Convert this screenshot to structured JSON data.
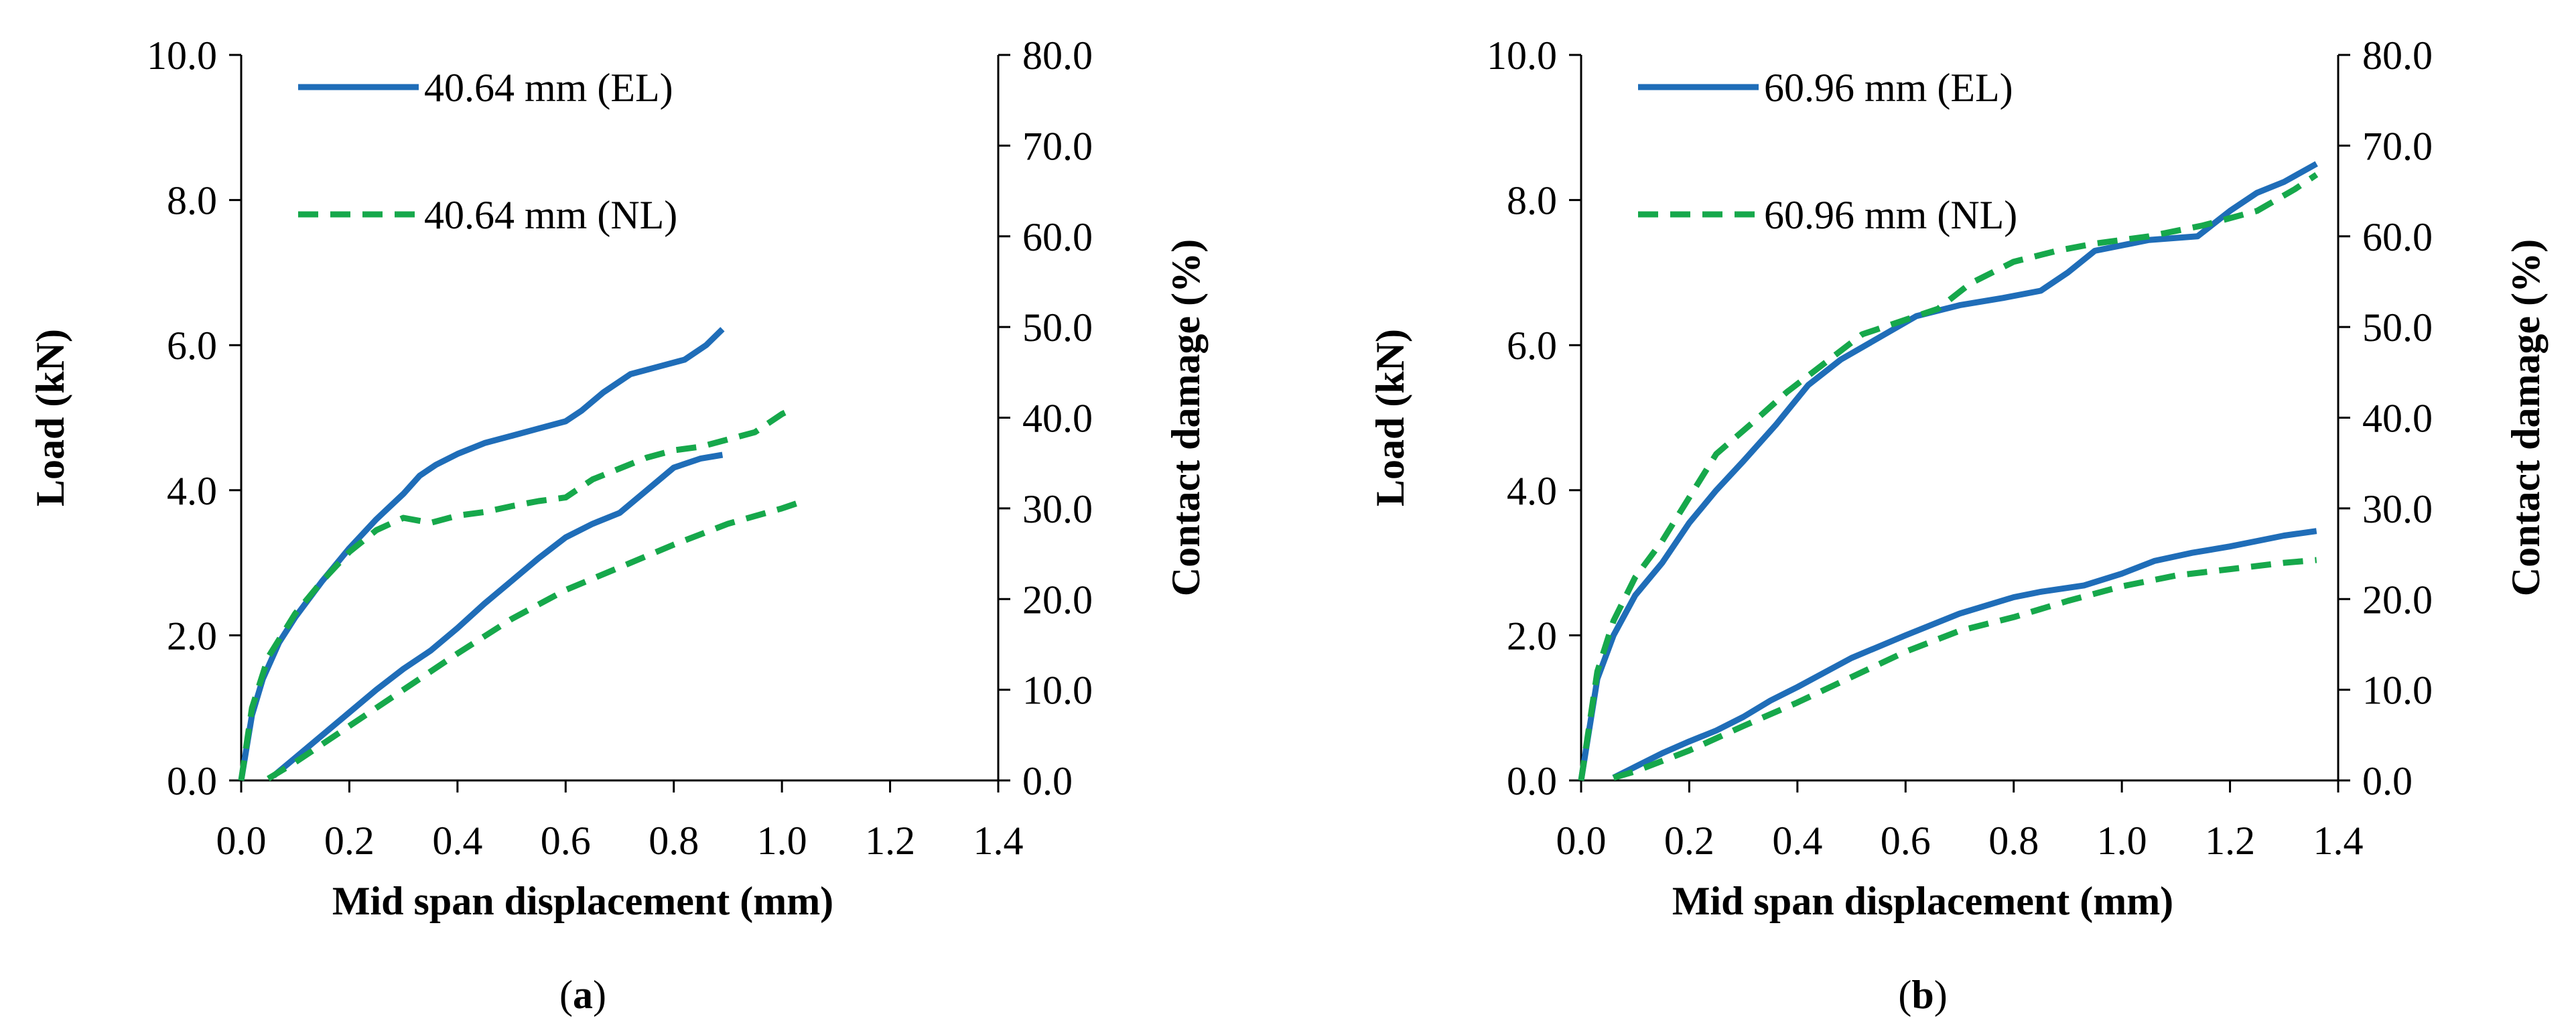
{
  "colors": {
    "el": "#1F6DB8",
    "nl": "#16A84B",
    "axis": "#000000"
  },
  "chart_data": [
    {
      "type": "line",
      "caption_prefix": "(",
      "caption_letter": "a",
      "caption_suffix": ")",
      "xlabel": "Mid span displacement (mm)",
      "ylabel": "Load (kN)",
      "y2label": "Contact damage (%)",
      "xlim": [
        0,
        1.4
      ],
      "ylim": [
        0,
        10
      ],
      "y2lim": [
        0,
        80
      ],
      "xticks": [
        "0.0",
        "0.2",
        "0.4",
        "0.6",
        "0.8",
        "1.0",
        "1.2",
        "1.4"
      ],
      "yticks": [
        "0.0",
        "2.0",
        "4.0",
        "6.0",
        "8.0",
        "10.0"
      ],
      "y2ticks": [
        "0.0",
        "10.0",
        "20.0",
        "30.0",
        "40.0",
        "50.0",
        "60.0",
        "70.0",
        "80.0"
      ],
      "legend": [
        {
          "label": "40.64 mm (EL)",
          "style": "solid"
        },
        {
          "label": "40.64 mm (NL)",
          "style": "dashed"
        }
      ],
      "series": [
        {
          "name": "40.64 mm (EL) load",
          "style": "solid",
          "axis": "left",
          "x": [
            0,
            0.02,
            0.04,
            0.07,
            0.1,
            0.15,
            0.2,
            0.25,
            0.3,
            0.33,
            0.36,
            0.4,
            0.45,
            0.5,
            0.55,
            0.6,
            0.63,
            0.67,
            0.72,
            0.77,
            0.82,
            0.86,
            0.89
          ],
          "y": [
            0,
            0.9,
            1.4,
            1.9,
            2.25,
            2.75,
            3.2,
            3.6,
            3.95,
            4.2,
            4.35,
            4.5,
            4.65,
            4.75,
            4.85,
            4.95,
            5.1,
            5.35,
            5.6,
            5.7,
            5.8,
            6.0,
            6.22
          ]
        },
        {
          "name": "40.64 mm (NL) load",
          "style": "dashed",
          "axis": "left",
          "x": [
            0,
            0.02,
            0.05,
            0.1,
            0.15,
            0.2,
            0.25,
            0.3,
            0.35,
            0.4,
            0.45,
            0.5,
            0.55,
            0.6,
            0.65,
            0.7,
            0.75,
            0.8,
            0.85,
            0.9,
            0.95,
            1.0,
            1.02
          ],
          "y": [
            0,
            1.0,
            1.7,
            2.3,
            2.75,
            3.15,
            3.45,
            3.62,
            3.55,
            3.65,
            3.7,
            3.78,
            3.85,
            3.9,
            4.15,
            4.3,
            4.45,
            4.55,
            4.6,
            4.7,
            4.8,
            5.05,
            5.12
          ]
        },
        {
          "name": "40.64 mm (EL) contact damage",
          "style": "solid",
          "axis": "right",
          "x": [
            0.06,
            0.1,
            0.15,
            0.2,
            0.25,
            0.3,
            0.35,
            0.4,
            0.45,
            0.5,
            0.55,
            0.6,
            0.65,
            0.7,
            0.75,
            0.8,
            0.85,
            0.89
          ],
          "y": [
            0.5,
            2.5,
            5.0,
            7.5,
            10.0,
            12.3,
            14.3,
            16.8,
            19.5,
            22.0,
            24.5,
            26.8,
            28.3,
            29.5,
            32.0,
            34.5,
            35.5,
            35.9
          ]
        },
        {
          "name": "40.64 mm (NL) contact damage",
          "style": "dashed",
          "axis": "right",
          "x": [
            0.05,
            0.1,
            0.2,
            0.3,
            0.4,
            0.5,
            0.6,
            0.7,
            0.8,
            0.9,
            1.0,
            1.04
          ],
          "y": [
            0.2,
            2.0,
            6.0,
            10.0,
            14.0,
            17.8,
            21.0,
            23.5,
            26.0,
            28.3,
            30.0,
            30.8
          ]
        }
      ]
    },
    {
      "type": "line",
      "caption_prefix": "(",
      "caption_letter": "b",
      "caption_suffix": ")",
      "xlabel": "Mid span displacement (mm)",
      "ylabel": "Load (kN)",
      "y2label": "Contact damage (%)",
      "xlim": [
        0,
        1.4
      ],
      "ylim": [
        0,
        10
      ],
      "y2lim": [
        0,
        80
      ],
      "xticks": [
        "0.0",
        "0.2",
        "0.4",
        "0.6",
        "0.8",
        "1.0",
        "1.2",
        "1.4"
      ],
      "yticks": [
        "0.0",
        "2.0",
        "4.0",
        "6.0",
        "8.0",
        "10.0"
      ],
      "y2ticks": [
        "0.0",
        "10.0",
        "20.0",
        "30.0",
        "40.0",
        "50.0",
        "60.0",
        "70.0",
        "80.0"
      ],
      "legend": [
        {
          "label": "60.96 mm (EL)",
          "style": "solid"
        },
        {
          "label": "60.96 mm (NL)",
          "style": "dashed"
        }
      ],
      "series": [
        {
          "name": "60.96 mm (EL) load",
          "style": "solid",
          "axis": "left",
          "x": [
            0,
            0.03,
            0.06,
            0.1,
            0.15,
            0.2,
            0.25,
            0.3,
            0.36,
            0.42,
            0.48,
            0.55,
            0.62,
            0.7,
            0.78,
            0.85,
            0.9,
            0.95,
            1.05,
            1.14,
            1.2,
            1.25,
            1.3,
            1.36
          ],
          "y": [
            0,
            1.4,
            2.0,
            2.55,
            3.0,
            3.55,
            4.0,
            4.4,
            4.9,
            5.45,
            5.8,
            6.1,
            6.4,
            6.55,
            6.65,
            6.75,
            7.0,
            7.3,
            7.45,
            7.5,
            7.85,
            8.1,
            8.25,
            8.5
          ]
        },
        {
          "name": "60.96 mm (NL) load",
          "style": "dashed",
          "axis": "left",
          "x": [
            0,
            0.03,
            0.06,
            0.1,
            0.15,
            0.2,
            0.25,
            0.32,
            0.38,
            0.45,
            0.52,
            0.6,
            0.66,
            0.72,
            0.8,
            0.88,
            0.95,
            1.05,
            1.15,
            1.25,
            1.32,
            1.36
          ],
          "y": [
            0,
            1.5,
            2.2,
            2.8,
            3.3,
            3.9,
            4.5,
            4.95,
            5.35,
            5.75,
            6.15,
            6.35,
            6.5,
            6.85,
            7.15,
            7.3,
            7.4,
            7.5,
            7.65,
            7.85,
            8.15,
            8.35
          ]
        },
        {
          "name": "60.96 mm (EL) contact damage",
          "style": "solid",
          "axis": "right",
          "x": [
            0.06,
            0.1,
            0.15,
            0.2,
            0.25,
            0.3,
            0.35,
            0.4,
            0.5,
            0.6,
            0.7,
            0.8,
            0.85,
            0.93,
            1.0,
            1.06,
            1.13,
            1.2,
            1.25,
            1.3,
            1.36
          ],
          "y": [
            0.3,
            1.5,
            3.0,
            4.3,
            5.5,
            7.0,
            8.8,
            10.3,
            13.5,
            16.0,
            18.4,
            20.2,
            20.8,
            21.5,
            22.8,
            24.2,
            25.1,
            25.8,
            26.4,
            27.0,
            27.5
          ]
        },
        {
          "name": "60.96 mm (NL) contact damage",
          "style": "dashed",
          "axis": "right",
          "x": [
            0.06,
            0.1,
            0.2,
            0.3,
            0.4,
            0.5,
            0.6,
            0.7,
            0.8,
            0.9,
            1.0,
            1.1,
            1.2,
            1.3,
            1.36
          ],
          "y": [
            0.3,
            1.0,
            3.3,
            6.0,
            8.6,
            11.4,
            14.2,
            16.5,
            18.0,
            19.8,
            21.4,
            22.6,
            23.3,
            24.0,
            24.3
          ]
        }
      ]
    }
  ]
}
